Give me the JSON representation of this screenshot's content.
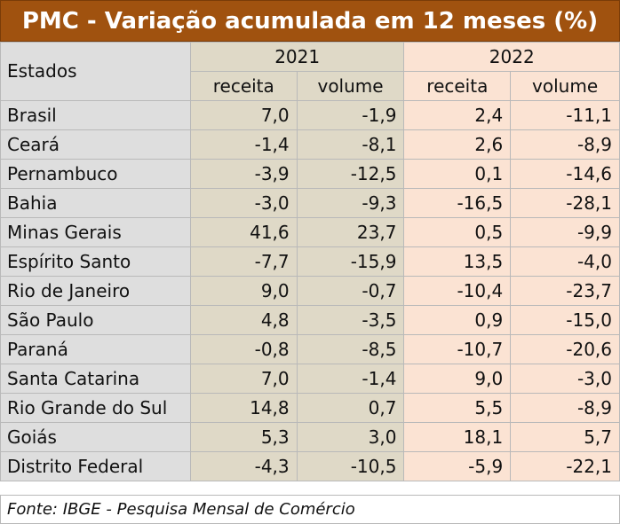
{
  "title": "PMC - Variação acumulada em 12 meses (%)",
  "header": {
    "states_label": "Estados",
    "year_2021": "2021",
    "year_2022": "2022",
    "col_receita": "receita",
    "col_volume": "volume"
  },
  "rows": [
    {
      "estado": "Brasil",
      "r2021": "7,0",
      "v2021": "-1,9",
      "r2022": "2,4",
      "v2022": "-11,1"
    },
    {
      "estado": "Ceará",
      "r2021": "-1,4",
      "v2021": "-8,1",
      "r2022": "2,6",
      "v2022": "-8,9"
    },
    {
      "estado": "Pernambuco",
      "r2021": "-3,9",
      "v2021": "-12,5",
      "r2022": "0,1",
      "v2022": "-14,6"
    },
    {
      "estado": "Bahia",
      "r2021": "-3,0",
      "v2021": "-9,3",
      "r2022": "-16,5",
      "v2022": "-28,1"
    },
    {
      "estado": "Minas Gerais",
      "r2021": "41,6",
      "v2021": "23,7",
      "r2022": "0,5",
      "v2022": "-9,9"
    },
    {
      "estado": "Espírito Santo",
      "r2021": "-7,7",
      "v2021": "-15,9",
      "r2022": "13,5",
      "v2022": "-4,0"
    },
    {
      "estado": "Rio de Janeiro",
      "r2021": "9,0",
      "v2021": "-0,7",
      "r2022": "-10,4",
      "v2022": "-23,7"
    },
    {
      "estado": "São Paulo",
      "r2021": "4,8",
      "v2021": "-3,5",
      "r2022": "0,9",
      "v2022": "-15,0"
    },
    {
      "estado": "Paraná",
      "r2021": "-0,8",
      "v2021": "-8,5",
      "r2022": "-10,7",
      "v2022": "-20,6"
    },
    {
      "estado": "Santa Catarina",
      "r2021": "7,0",
      "v2021": "-1,4",
      "r2022": "9,0",
      "v2022": "-3,0"
    },
    {
      "estado": "Rio Grande do Sul",
      "r2021": "14,8",
      "v2021": "0,7",
      "r2022": "5,5",
      "v2022": "-8,9"
    },
    {
      "estado": "Goiás",
      "r2021": "5,3",
      "v2021": "3,0",
      "r2022": "18,1",
      "v2022": "5,7"
    },
    {
      "estado": "Distrito Federal",
      "r2021": "-4,3",
      "v2021": "-10,5",
      "r2022": "-5,9",
      "v2022": "-22,1"
    }
  ],
  "source": "Fonte: IBGE - Pesquisa Mensal de Comércio",
  "colors": {
    "title_bg": "#a0520f",
    "col_2021_bg": "#dfd9c7",
    "col_2022_bg": "#fbe3d3",
    "states_bg": "#dedede"
  }
}
